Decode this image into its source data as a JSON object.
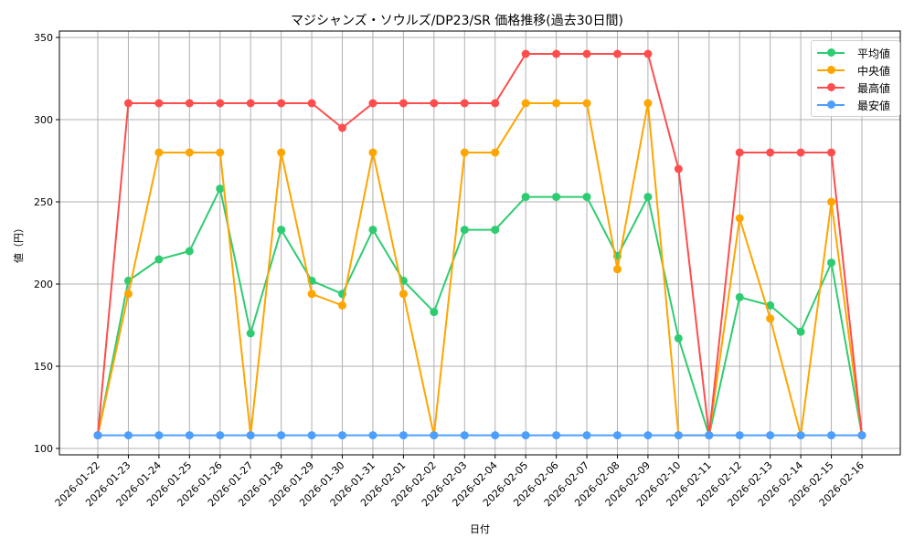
{
  "chart_data": {
    "type": "line",
    "title": "マジシャンズ・ソウルズ/DP23/SR 価格推移(過去30日間)",
    "xlabel": "日付",
    "ylabel": "値（円）",
    "ylim": [
      97,
      352
    ],
    "yticks": [
      100,
      150,
      200,
      250,
      300,
      350
    ],
    "grid": true,
    "legend_position": "upper right",
    "x": [
      "2026-01-22",
      "2026-01-23",
      "2026-01-24",
      "2026-01-25",
      "2026-01-26",
      "2026-01-27",
      "2026-01-28",
      "2026-01-29",
      "2026-01-30",
      "2026-01-31",
      "2026-02-01",
      "2026-02-02",
      "2026-02-03",
      "2026-02-04",
      "2026-02-05",
      "2026-02-06",
      "2026-02-07",
      "2026-02-08",
      "2026-02-09",
      "2026-02-10",
      "2026-02-11",
      "2026-02-12",
      "2026-02-13",
      "2026-02-14",
      "2026-02-15",
      "2026-02-16"
    ],
    "series": [
      {
        "name": "平均値",
        "color": "#2ecc71",
        "values": [
          108,
          202,
          215,
          220,
          258,
          170,
          233,
          202,
          194,
          233,
          202,
          183,
          233,
          233,
          253,
          253,
          253,
          217,
          253,
          167,
          108,
          192,
          187,
          171,
          213,
          108
        ]
      },
      {
        "name": "中央値",
        "color": "#ffa500",
        "values": [
          108,
          194,
          280,
          280,
          280,
          108,
          280,
          194,
          187,
          280,
          194,
          108,
          280,
          280,
          310,
          310,
          310,
          209,
          310,
          108,
          108,
          240,
          179,
          108,
          250,
          108
        ]
      },
      {
        "name": "最高値",
        "color": "#ff4d4d",
        "values": [
          108,
          310,
          310,
          310,
          310,
          310,
          310,
          310,
          295,
          310,
          310,
          310,
          310,
          310,
          340,
          340,
          340,
          340,
          340,
          270,
          108,
          280,
          280,
          280,
          280,
          108
        ]
      },
      {
        "name": "最安値",
        "color": "#4d9fff",
        "values": [
          108,
          108,
          108,
          108,
          108,
          108,
          108,
          108,
          108,
          108,
          108,
          108,
          108,
          108,
          108,
          108,
          108,
          108,
          108,
          108,
          108,
          108,
          108,
          108,
          108,
          108
        ]
      }
    ]
  }
}
